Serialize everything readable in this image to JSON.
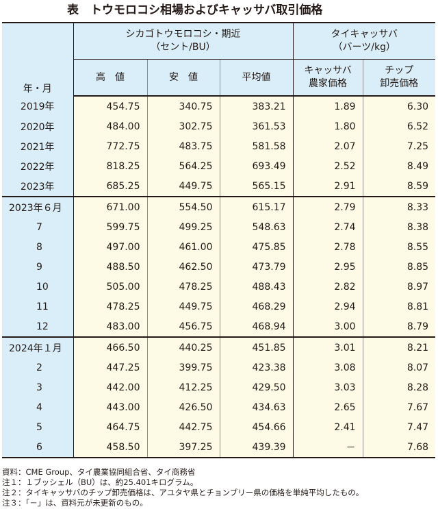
{
  "title": "表　トウモロコシ相場およびキャッサバ取引価格",
  "header": {
    "year_month": "年・月",
    "group_corn_line1": "シカゴトウモロコシ・期近",
    "group_corn_line2": "（セント/BU）",
    "group_cassava_line1": "タイキャッサバ",
    "group_cassava_line2": "（バーツ/kg）",
    "col_high": "高　値",
    "col_low": "安　値",
    "col_avg": "平均値",
    "col_farm_line1": "キャッサバ",
    "col_farm_line2": "農家価格",
    "col_chip_line1": "チップ",
    "col_chip_line2": "卸売価格"
  },
  "rows": [
    {
      "label": "2019年",
      "high": "454.75",
      "low": "340.75",
      "avg": "383.21",
      "farm": "1.89",
      "chip": "6.30"
    },
    {
      "label": "2020年",
      "high": "484.00",
      "low": "302.75",
      "avg": "361.53",
      "farm": "1.80",
      "chip": "6.52"
    },
    {
      "label": "2021年",
      "high": "772.75",
      "low": "483.75",
      "avg": "581.58",
      "farm": "2.07",
      "chip": "7.25"
    },
    {
      "label": "2022年",
      "high": "818.25",
      "low": "564.25",
      "avg": "693.49",
      "farm": "2.52",
      "chip": "8.49"
    },
    {
      "label": "2023年",
      "high": "685.25",
      "low": "449.75",
      "avg": "565.15",
      "farm": "2.91",
      "chip": "8.59"
    },
    {
      "label": "2023年６月",
      "high": "671.00",
      "low": "554.50",
      "avg": "615.17",
      "farm": "2.79",
      "chip": "8.33"
    },
    {
      "label": "7",
      "high": "599.75",
      "low": "499.25",
      "avg": "548.63",
      "farm": "2.74",
      "chip": "8.38"
    },
    {
      "label": "8",
      "high": "497.00",
      "low": "461.00",
      "avg": "475.85",
      "farm": "2.78",
      "chip": "8.55"
    },
    {
      "label": "9",
      "high": "488.50",
      "low": "462.50",
      "avg": "473.79",
      "farm": "2.95",
      "chip": "8.85"
    },
    {
      "label": "10",
      "high": "505.00",
      "low": "478.25",
      "avg": "488.43",
      "farm": "2.82",
      "chip": "8.97"
    },
    {
      "label": "11",
      "high": "478.25",
      "low": "449.75",
      "avg": "468.29",
      "farm": "2.94",
      "chip": "8.81"
    },
    {
      "label": "12",
      "high": "483.00",
      "low": "456.75",
      "avg": "468.94",
      "farm": "3.00",
      "chip": "8.79"
    },
    {
      "label": "2024年１月",
      "high": "466.50",
      "low": "440.25",
      "avg": "451.85",
      "farm": "3.01",
      "chip": "8.21"
    },
    {
      "label": "2",
      "high": "447.25",
      "low": "399.75",
      "avg": "423.38",
      "farm": "3.08",
      "chip": "8.07"
    },
    {
      "label": "3",
      "high": "442.00",
      "low": "412.25",
      "avg": "429.50",
      "farm": "3.03",
      "chip": "8.28"
    },
    {
      "label": "4",
      "high": "443.00",
      "low": "426.50",
      "avg": "434.63",
      "farm": "2.65",
      "chip": "7.67"
    },
    {
      "label": "5",
      "high": "464.75",
      "low": "442.75",
      "avg": "454.66",
      "farm": "2.41",
      "chip": "7.47"
    },
    {
      "label": "6",
      "high": "458.50",
      "low": "397.25",
      "avg": "439.39",
      "farm": "－",
      "chip": "7.68"
    }
  ],
  "notes": [
    "資料：CME Group、タイ農業協同組合省、タイ商務省",
    "注１：１ブッシェル（BU）は、約25.401キログラム。",
    "注２：タイキャッサバのチップ卸売価格は、アユタヤ県とチョンブリー県の価格を単純平均したもの。",
    "注３：「－」は、資料元が未更新のもの。"
  ]
}
